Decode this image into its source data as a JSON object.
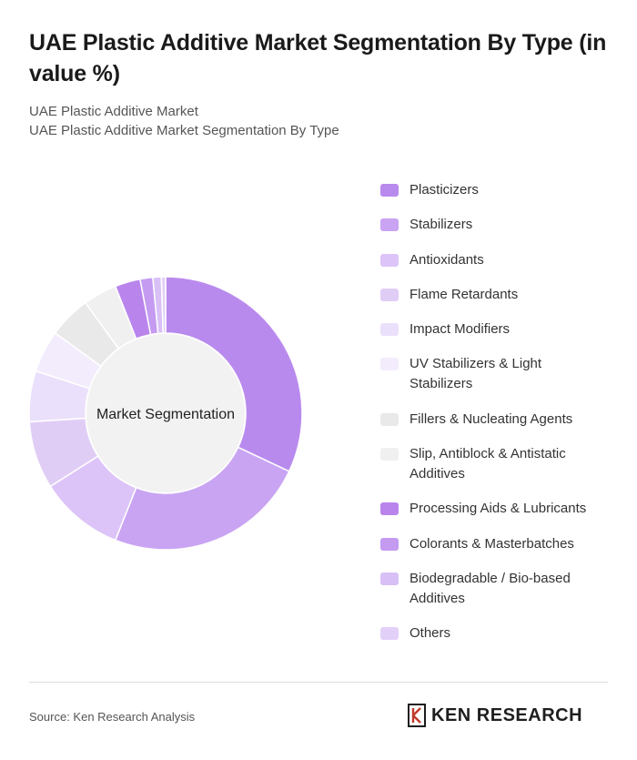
{
  "title": "UAE Plastic Additive Market Segmentation By Type (in value %)",
  "subtitle_1": "UAE Plastic Additive Market",
  "subtitle_2": "UAE Plastic Additive Market Segmentation By Type",
  "source": "Source: Ken Research Analysis",
  "brand": "KEN RESEARCH",
  "chart_data": {
    "type": "pie",
    "center_label": "Market Segmentation",
    "categories": [
      "Plasticizers",
      "Stabilizers",
      "Antioxidants",
      "Flame Retardants",
      "Impact Modifiers",
      "UV Stabilizers & Light Stabilizers",
      "Fillers & Nucleating Agents",
      "Slip, Antiblock & Antistatic Additives",
      "Processing Aids & Lubricants",
      "Colorants & Masterbatches",
      "Biodegradable / Bio-based Additives",
      "Others"
    ],
    "values": [
      32,
      24,
      10,
      8,
      6,
      5,
      5,
      4,
      3,
      1.5,
      1,
      0.5
    ],
    "colors": [
      "#b98aee",
      "#c9a4f3",
      "#dcc4f8",
      "#e0cdf6",
      "#ebe0fb",
      "#f3ecfc",
      "#e9e9e9",
      "#f0f0f0",
      "#b985ec",
      "#c49bf1",
      "#d8c0f7",
      "#e2d0f9"
    ],
    "legend_position": "right"
  }
}
